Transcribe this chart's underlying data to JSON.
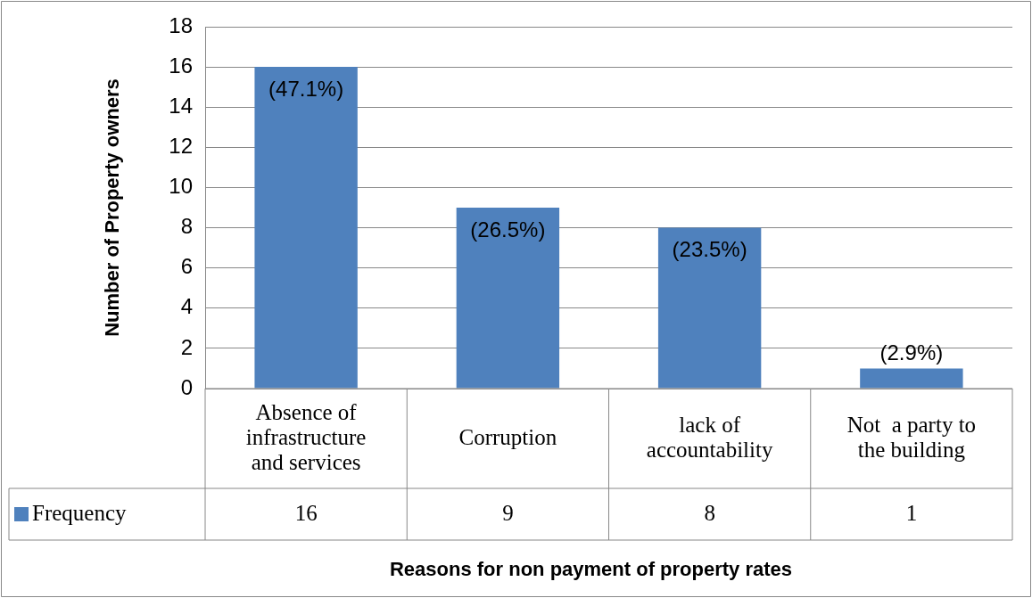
{
  "chart_data": {
    "type": "bar",
    "xlabel": "Reasons for non payment of property rates",
    "ylabel": "Number of Property owners",
    "categories": [
      "Absence of infrastructure and services",
      "Corruption",
      "lack of accountability",
      "Not  a party to the building"
    ],
    "series": [
      {
        "name": "Frequency",
        "color": "#4f81bd",
        "values": [
          16,
          9,
          8,
          1
        ]
      }
    ],
    "annotations": [
      {
        "text": "(47.1%)",
        "x": "Absence of infrastructure and services",
        "y": 16
      },
      {
        "text": "(26.5%)",
        "x": "Corruption",
        "y": 9
      },
      {
        "text": "(23.5%)",
        "x": "lack of accountability",
        "y": 8
      },
      {
        "text": "(2.9%)",
        "x": "Not  a party to the building",
        "y": 1
      }
    ],
    "ylim": [
      0,
      18
    ],
    "yticks": [
      0,
      2,
      4,
      6,
      8,
      10,
      12,
      14,
      16,
      18
    ],
    "grid": "y",
    "legend": "bottom",
    "data_labels": true
  }
}
